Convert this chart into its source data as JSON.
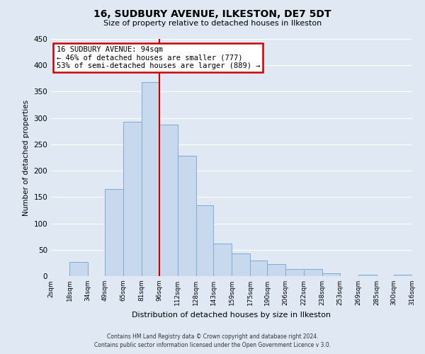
{
  "title": "16, SUDBURY AVENUE, ILKESTON, DE7 5DT",
  "subtitle": "Size of property relative to detached houses in Ilkeston",
  "xlabel": "Distribution of detached houses by size in Ilkeston",
  "ylabel": "Number of detached properties",
  "bar_labels": [
    "2sqm",
    "18sqm",
    "34sqm",
    "49sqm",
    "65sqm",
    "81sqm",
    "96sqm",
    "112sqm",
    "128sqm",
    "143sqm",
    "159sqm",
    "175sqm",
    "190sqm",
    "206sqm",
    "222sqm",
    "238sqm",
    "253sqm",
    "269sqm",
    "285sqm",
    "300sqm",
    "316sqm"
  ],
  "bar_edges": [
    2,
    18,
    34,
    49,
    65,
    81,
    96,
    112,
    128,
    143,
    159,
    175,
    190,
    206,
    222,
    238,
    253,
    269,
    285,
    300,
    316
  ],
  "bar_heights": [
    0,
    27,
    0,
    165,
    293,
    368,
    287,
    228,
    135,
    62,
    43,
    30,
    23,
    14,
    14,
    5,
    0,
    3,
    0,
    3
  ],
  "vline_x": 96,
  "vline_color": "#cc0000",
  "bar_facecolor": "#c8d9ee",
  "bar_edgecolor": "#7aadd4",
  "annotation_title": "16 SUDBURY AVENUE: 94sqm",
  "annotation_line1": "← 46% of detached houses are smaller (777)",
  "annotation_line2": "53% of semi-detached houses are larger (889) →",
  "annotation_box_facecolor": "#ffffff",
  "annotation_box_edgecolor": "#cc0000",
  "ylim": [
    0,
    450
  ],
  "yticks": [
    0,
    50,
    100,
    150,
    200,
    250,
    300,
    350,
    400,
    450
  ],
  "bg_color": "#dfe8f3",
  "grid_color": "#ffffff",
  "footer1": "Contains HM Land Registry data © Crown copyright and database right 2024.",
  "footer2": "Contains public sector information licensed under the Open Government Licence v 3.0."
}
